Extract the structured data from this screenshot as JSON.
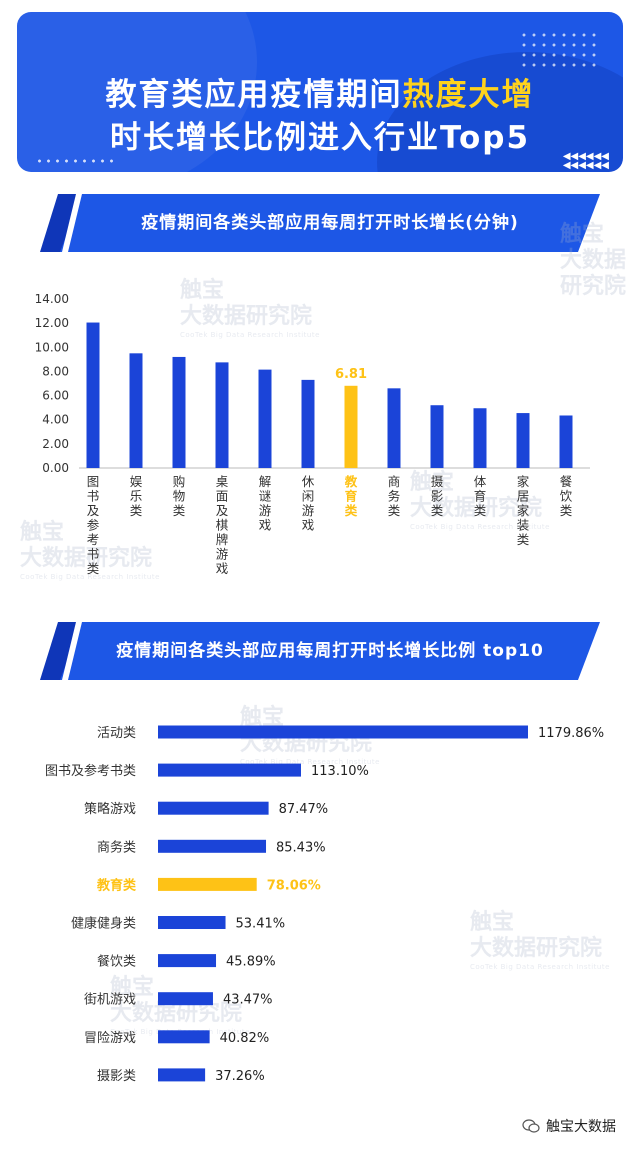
{
  "header": {
    "title_line1": "教育类应用疫情期间",
    "title_line1_highlight": "热度大增",
    "title_line2": "时长增长比例进入行业Top5",
    "arrows": "◀◀◀◀◀◀\n◀◀◀◀◀◀"
  },
  "watermark": {
    "line1": "触宝",
    "line2": "大数据研究院",
    "line3": "CooTek Big Data Research Institute"
  },
  "colors": {
    "brand_blue": "#1d57e6",
    "bar_blue": "#1b44d8",
    "highlight_yellow": "#fec216"
  },
  "chart_data": [
    {
      "type": "bar",
      "title": "疫情期间各类头部应用每周打开时长增长(分钟)",
      "categories": [
        "图书及参考书类",
        "娱乐类",
        "购物类",
        "桌面及棋牌游戏",
        "解谜游戏",
        "休闲游戏",
        "教育类",
        "商务类",
        "摄影类",
        "体育类",
        "家居家装类",
        "餐饮类"
      ],
      "values": [
        12.05,
        9.5,
        9.2,
        8.75,
        8.15,
        7.3,
        6.81,
        6.6,
        5.2,
        4.95,
        4.55,
        4.35
      ],
      "highlight_index": 6,
      "highlight_label": "6.81",
      "ylim": [
        0,
        14
      ],
      "yticks": [
        "0.00",
        "2.00",
        "4.00",
        "6.00",
        "8.00",
        "10.00",
        "12.00",
        "14.00"
      ],
      "grid": false
    },
    {
      "type": "bar",
      "orientation": "horizontal",
      "title": "疫情期间各类头部应用每周打开时长增长比例 top10",
      "categories": [
        "活动类",
        "图书及参考书类",
        "策略游戏",
        "商务类",
        "教育类",
        "健康健身类",
        "餐饮类",
        "街机游戏",
        "冒险游戏",
        "摄影类"
      ],
      "values": [
        1179.86,
        113.1,
        87.47,
        85.43,
        78.06,
        53.41,
        45.89,
        43.47,
        40.82,
        37.26
      ],
      "labels": [
        "1179.86%",
        "113.10%",
        "87.47%",
        "85.43%",
        "78.06%",
        "53.41%",
        "45.89%",
        "43.47%",
        "40.82%",
        "37.26%"
      ],
      "highlight_index": 4,
      "grid": false
    }
  ],
  "footer": {
    "brand": "触宝大数据",
    "icon": "wechat-icon"
  }
}
